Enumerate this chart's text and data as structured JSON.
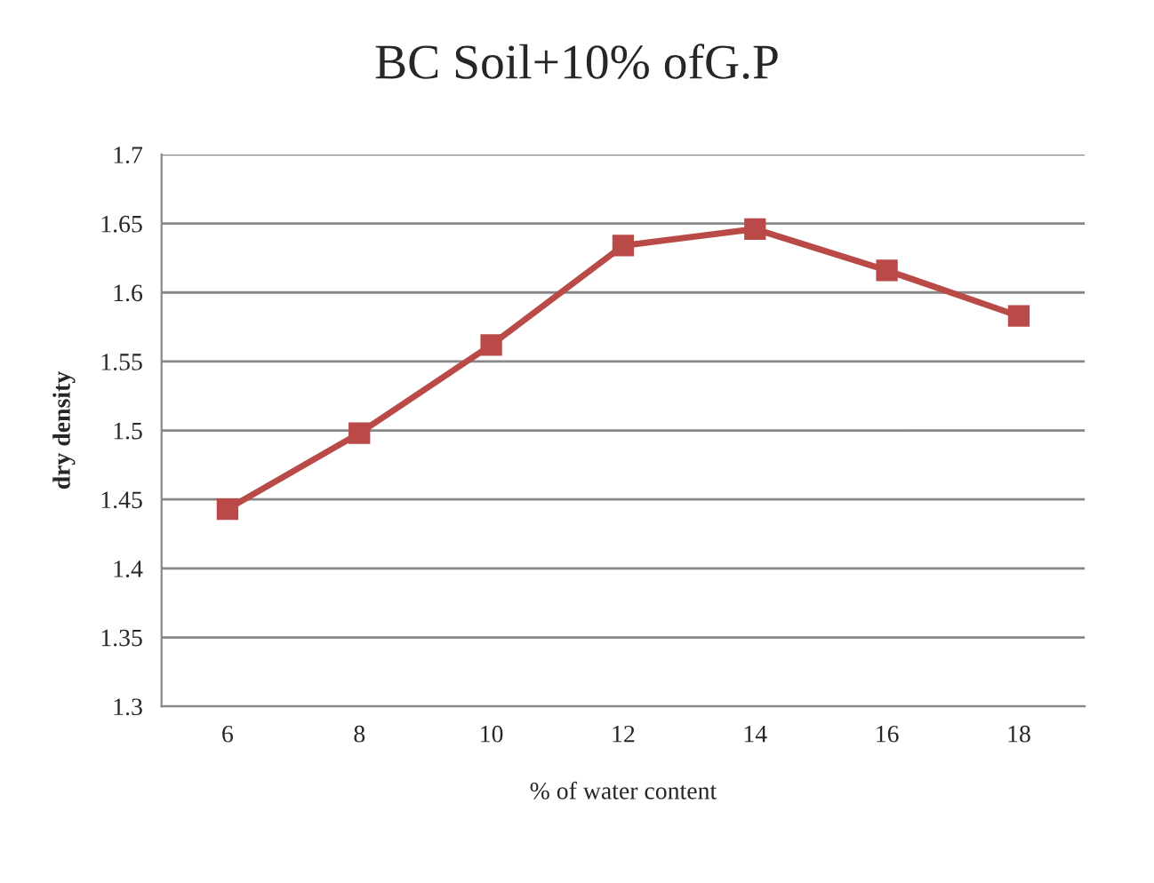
{
  "chart_data": {
    "type": "line",
    "title": "BC Soil+10% ofG.P",
    "xlabel": "% of water content",
    "ylabel": "dry density",
    "categories": [
      "6",
      "8",
      "10",
      "12",
      "14",
      "16",
      "18"
    ],
    "series": [
      {
        "color": "#b94a48",
        "values": [
          1.443,
          1.498,
          1.562,
          1.634,
          1.646,
          1.616,
          1.583
        ]
      }
    ],
    "ylim": [
      1.3,
      1.7
    ],
    "yticks": [
      1.3,
      1.35,
      1.4,
      1.45,
      1.5,
      1.55,
      1.6,
      1.65,
      1.7
    ],
    "grid": "y",
    "marker": "square",
    "line_style": "solid",
    "legend": false
  }
}
